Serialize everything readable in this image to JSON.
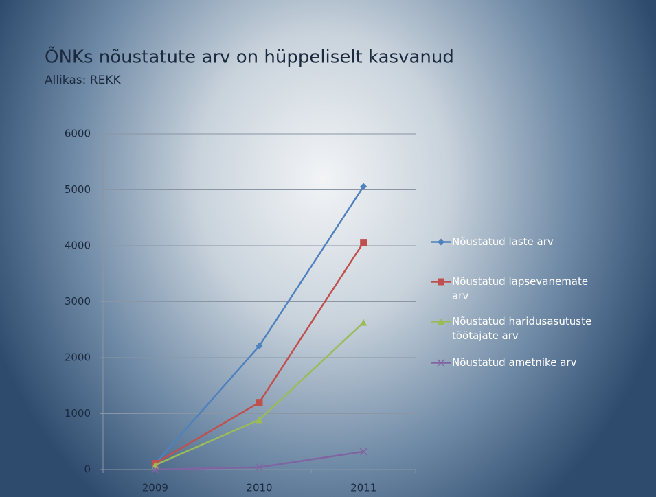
{
  "chart_data": {
    "type": "line",
    "title": "ÕNKs nõustatute arv on hüppeliselt kasvanud",
    "subtitle": "Allikas: REKK",
    "categories": [
      "2009",
      "2010",
      "2011"
    ],
    "series": [
      {
        "name": "Nõustatud laste arv",
        "color": "#4f81bd",
        "marker": "diamond",
        "values": [
          100,
          2210,
          5060
        ]
      },
      {
        "name": "Nõustatud lapsevanemate arv",
        "color": "#c0504d",
        "marker": "square",
        "values": [
          110,
          1200,
          4060
        ]
      },
      {
        "name": "Nõustatud haridusasutuste töötajate arv",
        "color": "#9bbb59",
        "marker": "triangle",
        "values": [
          80,
          890,
          2630
        ]
      },
      {
        "name": "Nõustatud ametnike arv",
        "color": "#8064a2",
        "marker": "x",
        "values": [
          0,
          40,
          320
        ]
      }
    ],
    "ylim": [
      0,
      6000
    ],
    "yticks": [
      0,
      1000,
      2000,
      3000,
      4000,
      5000,
      6000
    ],
    "grid": true,
    "legend": "right"
  }
}
